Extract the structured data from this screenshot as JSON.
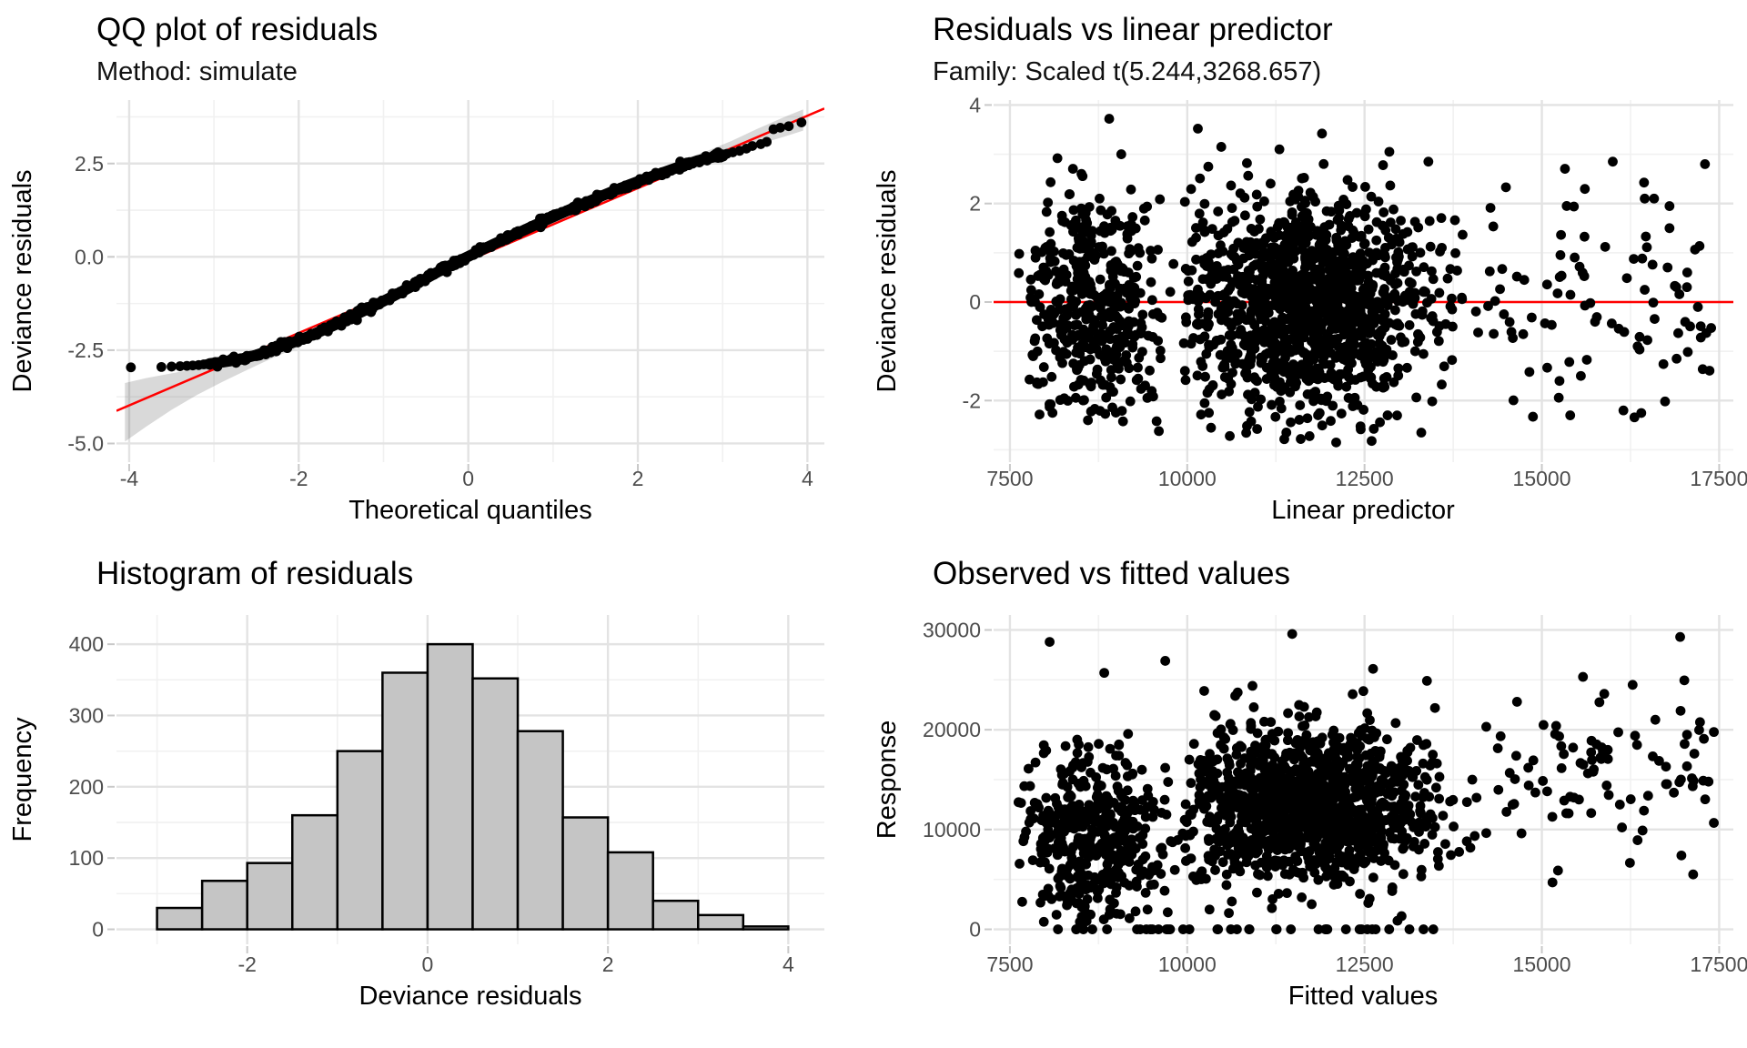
{
  "page": {
    "background": "#ffffff"
  },
  "colors": {
    "point": "#000000",
    "reference_line": "#ff0000",
    "band": "rgba(0,0,0,0.15)",
    "bar_fill": "#c5c5c5",
    "bar_stroke": "#000000",
    "grid_major": "#e3e3e3",
    "grid_minor": "#f1f1f1",
    "tick_mark": "#c9c9c9",
    "tick_label": "#4d4d4d"
  },
  "chart_data": [
    {
      "id": "qq",
      "type": "scatter",
      "title": "QQ plot of residuals",
      "subtitle": "Method: simulate",
      "xlabel": "Theoretical quantiles",
      "ylabel": "Deviance residuals",
      "x_domain": [
        -4.15,
        4.2
      ],
      "y_domain": [
        -5.5,
        4.2
      ],
      "x_ticks": [
        {
          "v": -4,
          "label": "-4"
        },
        {
          "v": -2,
          "label": "-2"
        },
        {
          "v": 0,
          "label": "0"
        },
        {
          "v": 2,
          "label": "2"
        },
        {
          "v": 4,
          "label": "4"
        }
      ],
      "y_ticks": [
        {
          "v": -5,
          "label": "-5.0"
        },
        {
          "v": -2.5,
          "label": "-2.5"
        },
        {
          "v": 0,
          "label": "0.0"
        },
        {
          "v": 2.5,
          "label": "2.5"
        }
      ],
      "x_minor": [
        -3,
        -1,
        1,
        3
      ],
      "y_minor": [
        -3.75,
        -1.25,
        1.25,
        3.75
      ],
      "reference_line": {
        "slope": 0.97,
        "intercept": -0.1
      },
      "band": [
        [
          -4.05,
          -4.95,
          -3.38
        ],
        [
          -3.8,
          -4.55,
          -3.25
        ],
        [
          -3.5,
          -4.1,
          -3.12
        ],
        [
          -3.2,
          -3.7,
          -3.0
        ],
        [
          -2.9,
          -3.35,
          -2.88
        ],
        [
          -2.6,
          -3.02,
          -2.72
        ],
        [
          -2.3,
          -2.7,
          -2.52
        ],
        [
          -2.0,
          -2.42,
          -2.22
        ],
        [
          -1.5,
          -1.85,
          -1.72
        ],
        [
          -1.0,
          -1.25,
          -1.12
        ],
        [
          -0.5,
          -0.62,
          -0.5
        ],
        [
          0,
          -0.08,
          0.06
        ],
        [
          0.5,
          0.45,
          0.57
        ],
        [
          1.0,
          0.98,
          1.12
        ],
        [
          1.5,
          1.5,
          1.65
        ],
        [
          2.0,
          1.98,
          2.18
        ],
        [
          2.5,
          2.35,
          2.58
        ],
        [
          2.8,
          2.58,
          2.82
        ],
        [
          3.1,
          2.8,
          3.1
        ],
        [
          3.4,
          3.0,
          3.42
        ],
        [
          3.7,
          3.2,
          3.72
        ],
        [
          3.95,
          3.38,
          3.95
        ]
      ],
      "curve": [
        [
          -3.05,
          -2.86
        ],
        [
          -2.9,
          -2.82
        ],
        [
          -2.7,
          -2.75
        ],
        [
          -2.5,
          -2.63
        ],
        [
          -2.3,
          -2.48
        ],
        [
          -2.1,
          -2.32
        ],
        [
          -1.9,
          -2.15
        ],
        [
          -1.7,
          -1.95
        ],
        [
          -1.5,
          -1.75
        ],
        [
          -1.3,
          -1.52
        ],
        [
          -1.1,
          -1.3
        ],
        [
          -0.9,
          -1.07
        ],
        [
          -0.7,
          -0.83
        ],
        [
          -0.5,
          -0.58
        ],
        [
          -0.3,
          -0.33
        ],
        [
          -0.1,
          -0.1
        ],
        [
          0.1,
          0.12
        ],
        [
          0.3,
          0.34
        ],
        [
          0.5,
          0.55
        ],
        [
          0.7,
          0.76
        ],
        [
          0.9,
          0.97
        ],
        [
          1.1,
          1.17
        ],
        [
          1.3,
          1.37
        ],
        [
          1.5,
          1.56
        ],
        [
          1.7,
          1.75
        ],
        [
          1.9,
          1.93
        ],
        [
          2.1,
          2.1
        ],
        [
          2.3,
          2.26
        ],
        [
          2.5,
          2.42
        ],
        [
          2.7,
          2.57
        ],
        [
          2.9,
          2.68
        ],
        [
          3.0,
          2.73
        ]
      ],
      "tail_low": [
        [
          -3.98,
          -2.96
        ],
        [
          -3.62,
          -2.95
        ],
        [
          -3.5,
          -2.94
        ],
        [
          -3.4,
          -2.93
        ],
        [
          -3.32,
          -2.92
        ],
        [
          -3.25,
          -2.91
        ],
        [
          -3.18,
          -2.9
        ],
        [
          -3.12,
          -2.88
        ],
        [
          -3.08,
          -2.87
        ]
      ],
      "tail_high": [
        [
          3.05,
          2.76
        ],
        [
          3.12,
          2.8
        ],
        [
          3.2,
          2.84
        ],
        [
          3.28,
          2.9
        ],
        [
          3.35,
          2.97
        ],
        [
          3.45,
          3.02
        ],
        [
          3.52,
          3.08
        ],
        [
          3.6,
          3.42
        ],
        [
          3.68,
          3.46
        ],
        [
          3.78,
          3.5
        ],
        [
          3.93,
          3.6
        ]
      ],
      "jitter": {
        "seed": 77,
        "n": 300,
        "x_sd": 0.015,
        "y_sd": 0.05
      }
    },
    {
      "id": "rvp",
      "type": "scatter",
      "title": "Residuals vs linear predictor",
      "subtitle": "Family: Scaled t(5.244,3268.657)",
      "xlabel": "Linear predictor",
      "ylabel": "Deviance residuals",
      "x_domain": [
        7270,
        17700
      ],
      "y_domain": [
        -3.25,
        4.1
      ],
      "x_ticks": [
        {
          "v": 7500,
          "label": "7500"
        },
        {
          "v": 10000,
          "label": "10000"
        },
        {
          "v": 12500,
          "label": "12500"
        },
        {
          "v": 15000,
          "label": "15000"
        },
        {
          "v": 17500,
          "label": "17500"
        }
      ],
      "y_ticks": [
        {
          "v": -2,
          "label": "-2"
        },
        {
          "v": 0,
          "label": "0"
        },
        {
          "v": 2,
          "label": "2"
        },
        {
          "v": 4,
          "label": "4"
        }
      ],
      "x_minor": [
        8750,
        11250,
        13750,
        16250
      ],
      "y_minor": [
        -3,
        -1,
        1,
        3
      ],
      "reference_line": {
        "y": 0
      },
      "points_spec": {
        "seed": 101,
        "clusters": [
          {
            "n": 430,
            "x": {
              "type": "normal",
              "mean": 8700,
              "sd": 520,
              "min": 7620,
              "max": 9950
            },
            "y": {
              "type": "normal",
              "mean": -0.02,
              "sd": 1.12,
              "min": -2.5,
              "max": 2.8
            }
          },
          {
            "n": 1280,
            "x": {
              "type": "normal",
              "mean": 11650,
              "sd": 900,
              "min": 9950,
              "max": 14150
            },
            "y": {
              "type": "normal",
              "mean": -0.05,
              "sd": 1.08,
              "min": -2.85,
              "max": 2.95
            }
          },
          {
            "n": 85,
            "x": {
              "type": "uniform",
              "min": 14150,
              "max": 17450
            },
            "y": {
              "type": "normal",
              "mean": 0.15,
              "sd": 1.1,
              "min": -2.45,
              "max": 2.85
            }
          }
        ],
        "extra": [
          [
            8900,
            3.72
          ],
          [
            10150,
            3.52
          ],
          [
            11900,
            3.42
          ],
          [
            10480,
            3.15
          ],
          [
            12850,
            3.05
          ],
          [
            9070,
            3.0
          ],
          [
            8170,
            2.92
          ],
          [
            11300,
            3.1
          ],
          [
            13400,
            2.85
          ],
          [
            16000,
            2.85
          ],
          [
            17300,
            2.8
          ],
          [
            16450,
            2.1
          ],
          [
            15350,
            1.95
          ],
          [
            16800,
            1.5
          ],
          [
            17050,
            0.6
          ],
          [
            15750,
            -0.4
          ],
          [
            16350,
            -0.9
          ],
          [
            16900,
            -1.15
          ],
          [
            15550,
            -1.5
          ],
          [
            16150,
            -2.2
          ],
          [
            15400,
            -2.3
          ],
          [
            17200,
            -0.1
          ],
          [
            9600,
            -2.62
          ],
          [
            10600,
            -2.72
          ],
          [
            11600,
            -2.78
          ],
          [
            12600,
            -2.82
          ],
          [
            13300,
            -2.65
          ],
          [
            8600,
            -2.4
          ],
          [
            8100,
            -2.25
          ],
          [
            12100,
            -2.85
          ]
        ]
      }
    },
    {
      "id": "hist",
      "type": "bar",
      "title": "Histogram of residuals",
      "xlabel": "Deviance residuals",
      "ylabel": "Frequency",
      "x_domain": [
        -3.45,
        4.4
      ],
      "y_domain": [
        -21,
        441
      ],
      "x_ticks": [
        {
          "v": -2,
          "label": "-2"
        },
        {
          "v": 0,
          "label": "0"
        },
        {
          "v": 2,
          "label": "2"
        },
        {
          "v": 4,
          "label": "4"
        }
      ],
      "y_ticks": [
        {
          "v": 0,
          "label": "0"
        },
        {
          "v": 100,
          "label": "100"
        },
        {
          "v": 200,
          "label": "200"
        },
        {
          "v": 300,
          "label": "300"
        },
        {
          "v": 400,
          "label": "400"
        }
      ],
      "x_minor": [
        -3,
        -1,
        1,
        3
      ],
      "y_minor": [
        50,
        150,
        250,
        350
      ],
      "bin_start": -3.0,
      "bin_width": 0.5,
      "counts": [
        30,
        68,
        93,
        160,
        250,
        360,
        400,
        352,
        278,
        157,
        108,
        40,
        20,
        4
      ]
    },
    {
      "id": "ovf",
      "type": "scatter",
      "title": "Observed vs fitted values",
      "xlabel": "Fitted values",
      "ylabel": "Response",
      "x_domain": [
        7270,
        17700
      ],
      "y_domain": [
        -1500,
        31500
      ],
      "x_ticks": [
        {
          "v": 7500,
          "label": "7500"
        },
        {
          "v": 10000,
          "label": "10000"
        },
        {
          "v": 12500,
          "label": "12500"
        },
        {
          "v": 15000,
          "label": "15000"
        },
        {
          "v": 17500,
          "label": "17500"
        }
      ],
      "y_ticks": [
        {
          "v": 0,
          "label": "0"
        },
        {
          "v": 10000,
          "label": "10000"
        },
        {
          "v": 20000,
          "label": "20000"
        },
        {
          "v": 30000,
          "label": "30000"
        }
      ],
      "x_minor": [
        8750,
        11250,
        13750,
        16250
      ],
      "y_minor": [
        5000,
        15000,
        25000
      ],
      "points_spec": {
        "seed": 202,
        "clusters": [
          {
            "n": 430,
            "x": {
              "type": "normal",
              "mean": 8700,
              "sd": 520,
              "min": 7620,
              "max": 9950
            },
            "y": {
              "type": "normal",
              "mean": 9200,
              "sd": 4300,
              "min": 600,
              "max": 20800
            }
          },
          {
            "n": 1280,
            "x": {
              "type": "normal",
              "mean": 11650,
              "sd": 900,
              "min": 9950,
              "max": 14150
            },
            "y": {
              "type": "normal",
              "mean": 12400,
              "sd": 3900,
              "min": 700,
              "max": 24600
            }
          },
          {
            "n": 85,
            "x": {
              "type": "uniform",
              "min": 14150,
              "max": 17450
            },
            "y": {
              "type": "normal",
              "mean": 15200,
              "sd": 4300,
              "min": 3000,
              "max": 25400
            }
          }
        ],
        "zero_row": {
          "n": 40,
          "x": {
            "type": "uniform",
            "min": 7950,
            "max": 13600
          },
          "y": 0
        },
        "extra": [
          [
            8060,
            28800
          ],
          [
            11480,
            29600
          ],
          [
            16950,
            29300
          ],
          [
            9690,
            26900
          ],
          [
            8830,
            25700
          ],
          [
            10920,
            24400
          ],
          [
            12620,
            26100
          ],
          [
            13380,
            24900
          ],
          [
            15580,
            25300
          ],
          [
            16280,
            24500
          ],
          [
            15880,
            23600
          ],
          [
            14650,
            22800
          ],
          [
            17150,
            17600
          ],
          [
            16750,
            16300
          ],
          [
            15150,
            4700
          ],
          [
            16420,
            9900
          ],
          [
            17350,
            14800
          ],
          [
            16100,
            12500
          ],
          [
            15700,
            18900
          ],
          [
            16600,
            21000
          ]
        ]
      }
    }
  ]
}
